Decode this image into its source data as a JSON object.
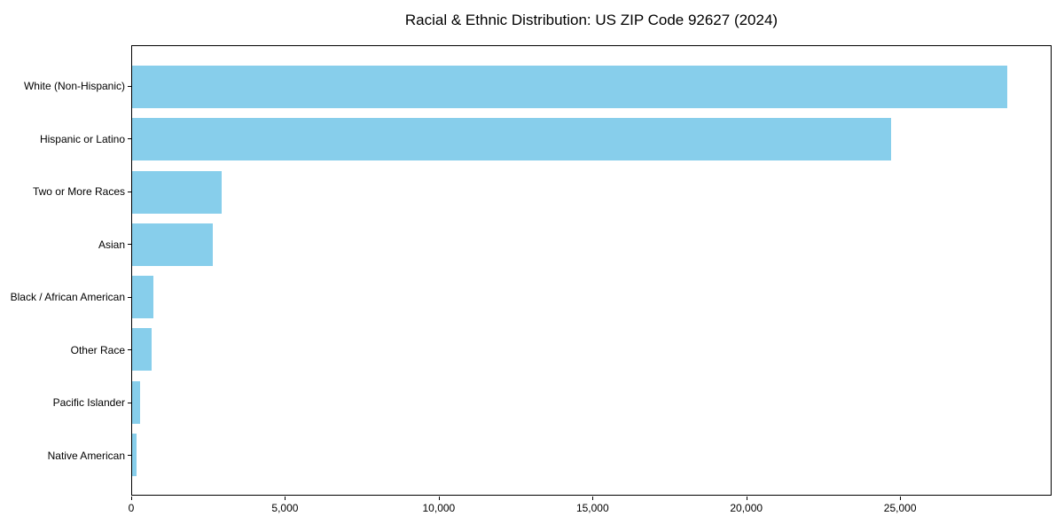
{
  "title": "Racial & Ethnic Distribution: US ZIP Code 92627 (2024)",
  "colors": {
    "bar_fill": "#87CEEB",
    "axis": "#000000",
    "text": "#000000",
    "background": "#ffffff"
  },
  "chart_data": {
    "type": "bar",
    "orientation": "horizontal",
    "title": "Racial & Ethnic Distribution: US ZIP Code 92627 (2024)",
    "categories": [
      "White (Non-Hispanic)",
      "Hispanic or Latino",
      "Two or More Races",
      "Asian",
      "Black / African American",
      "Other Race",
      "Pacific Islander",
      "Native American"
    ],
    "values": [
      28500,
      24740,
      2920,
      2630,
      700,
      630,
      260,
      130
    ],
    "xlabel": "",
    "ylabel": "",
    "xlim": [
      0,
      29925
    ],
    "x_tick_values": [
      0,
      5000,
      10000,
      15000,
      20000,
      25000
    ],
    "x_tick_labels": [
      "0",
      "5,000",
      "10,000",
      "15,000",
      "20,000",
      "25,000"
    ],
    "grid": false,
    "legend": null,
    "bar_color": "#87CEEB"
  }
}
